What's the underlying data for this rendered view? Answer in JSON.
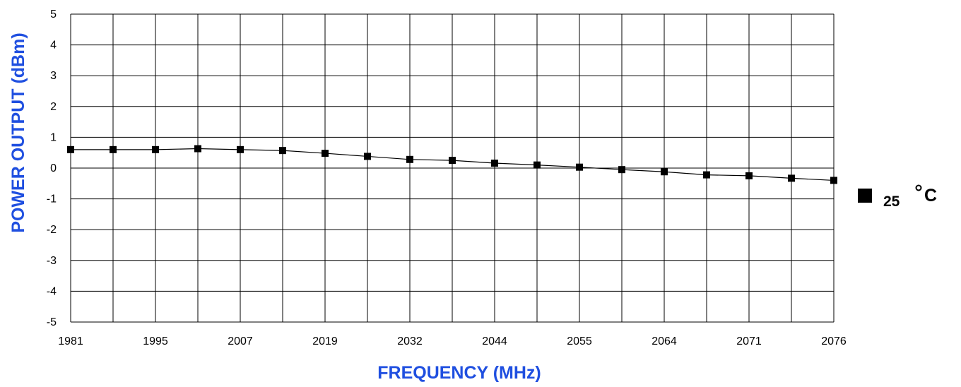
{
  "chart_data": {
    "type": "line",
    "x_tick_labels": [
      "1981",
      "1995",
      "2007",
      "2019",
      "2032",
      "2044",
      "2055",
      "2064",
      "2071",
      "2076"
    ],
    "y_tick_labels": [
      "5",
      "4",
      "3",
      "2",
      "1",
      "0",
      "-1",
      "-2",
      "-3",
      "-4",
      "-5"
    ],
    "ylim": [
      -5,
      5
    ],
    "grid": true,
    "xlabel": "FREQUENCY (MHz)",
    "ylabel": "POWER OUTPUT (dBm)",
    "legend_position": "right",
    "series": [
      {
        "name": "25 °C",
        "marker": "square",
        "color": "#000000",
        "values": [
          0.6,
          0.6,
          0.6,
          0.63,
          0.6,
          0.57,
          0.48,
          0.38,
          0.28,
          0.25,
          0.16,
          0.1,
          0.03,
          -0.05,
          -0.12,
          -0.22,
          -0.25,
          -0.33,
          -0.4
        ]
      }
    ],
    "legend": {
      "value": "25",
      "unit": "°C"
    },
    "axis_title_color": "#1f4fe0"
  }
}
